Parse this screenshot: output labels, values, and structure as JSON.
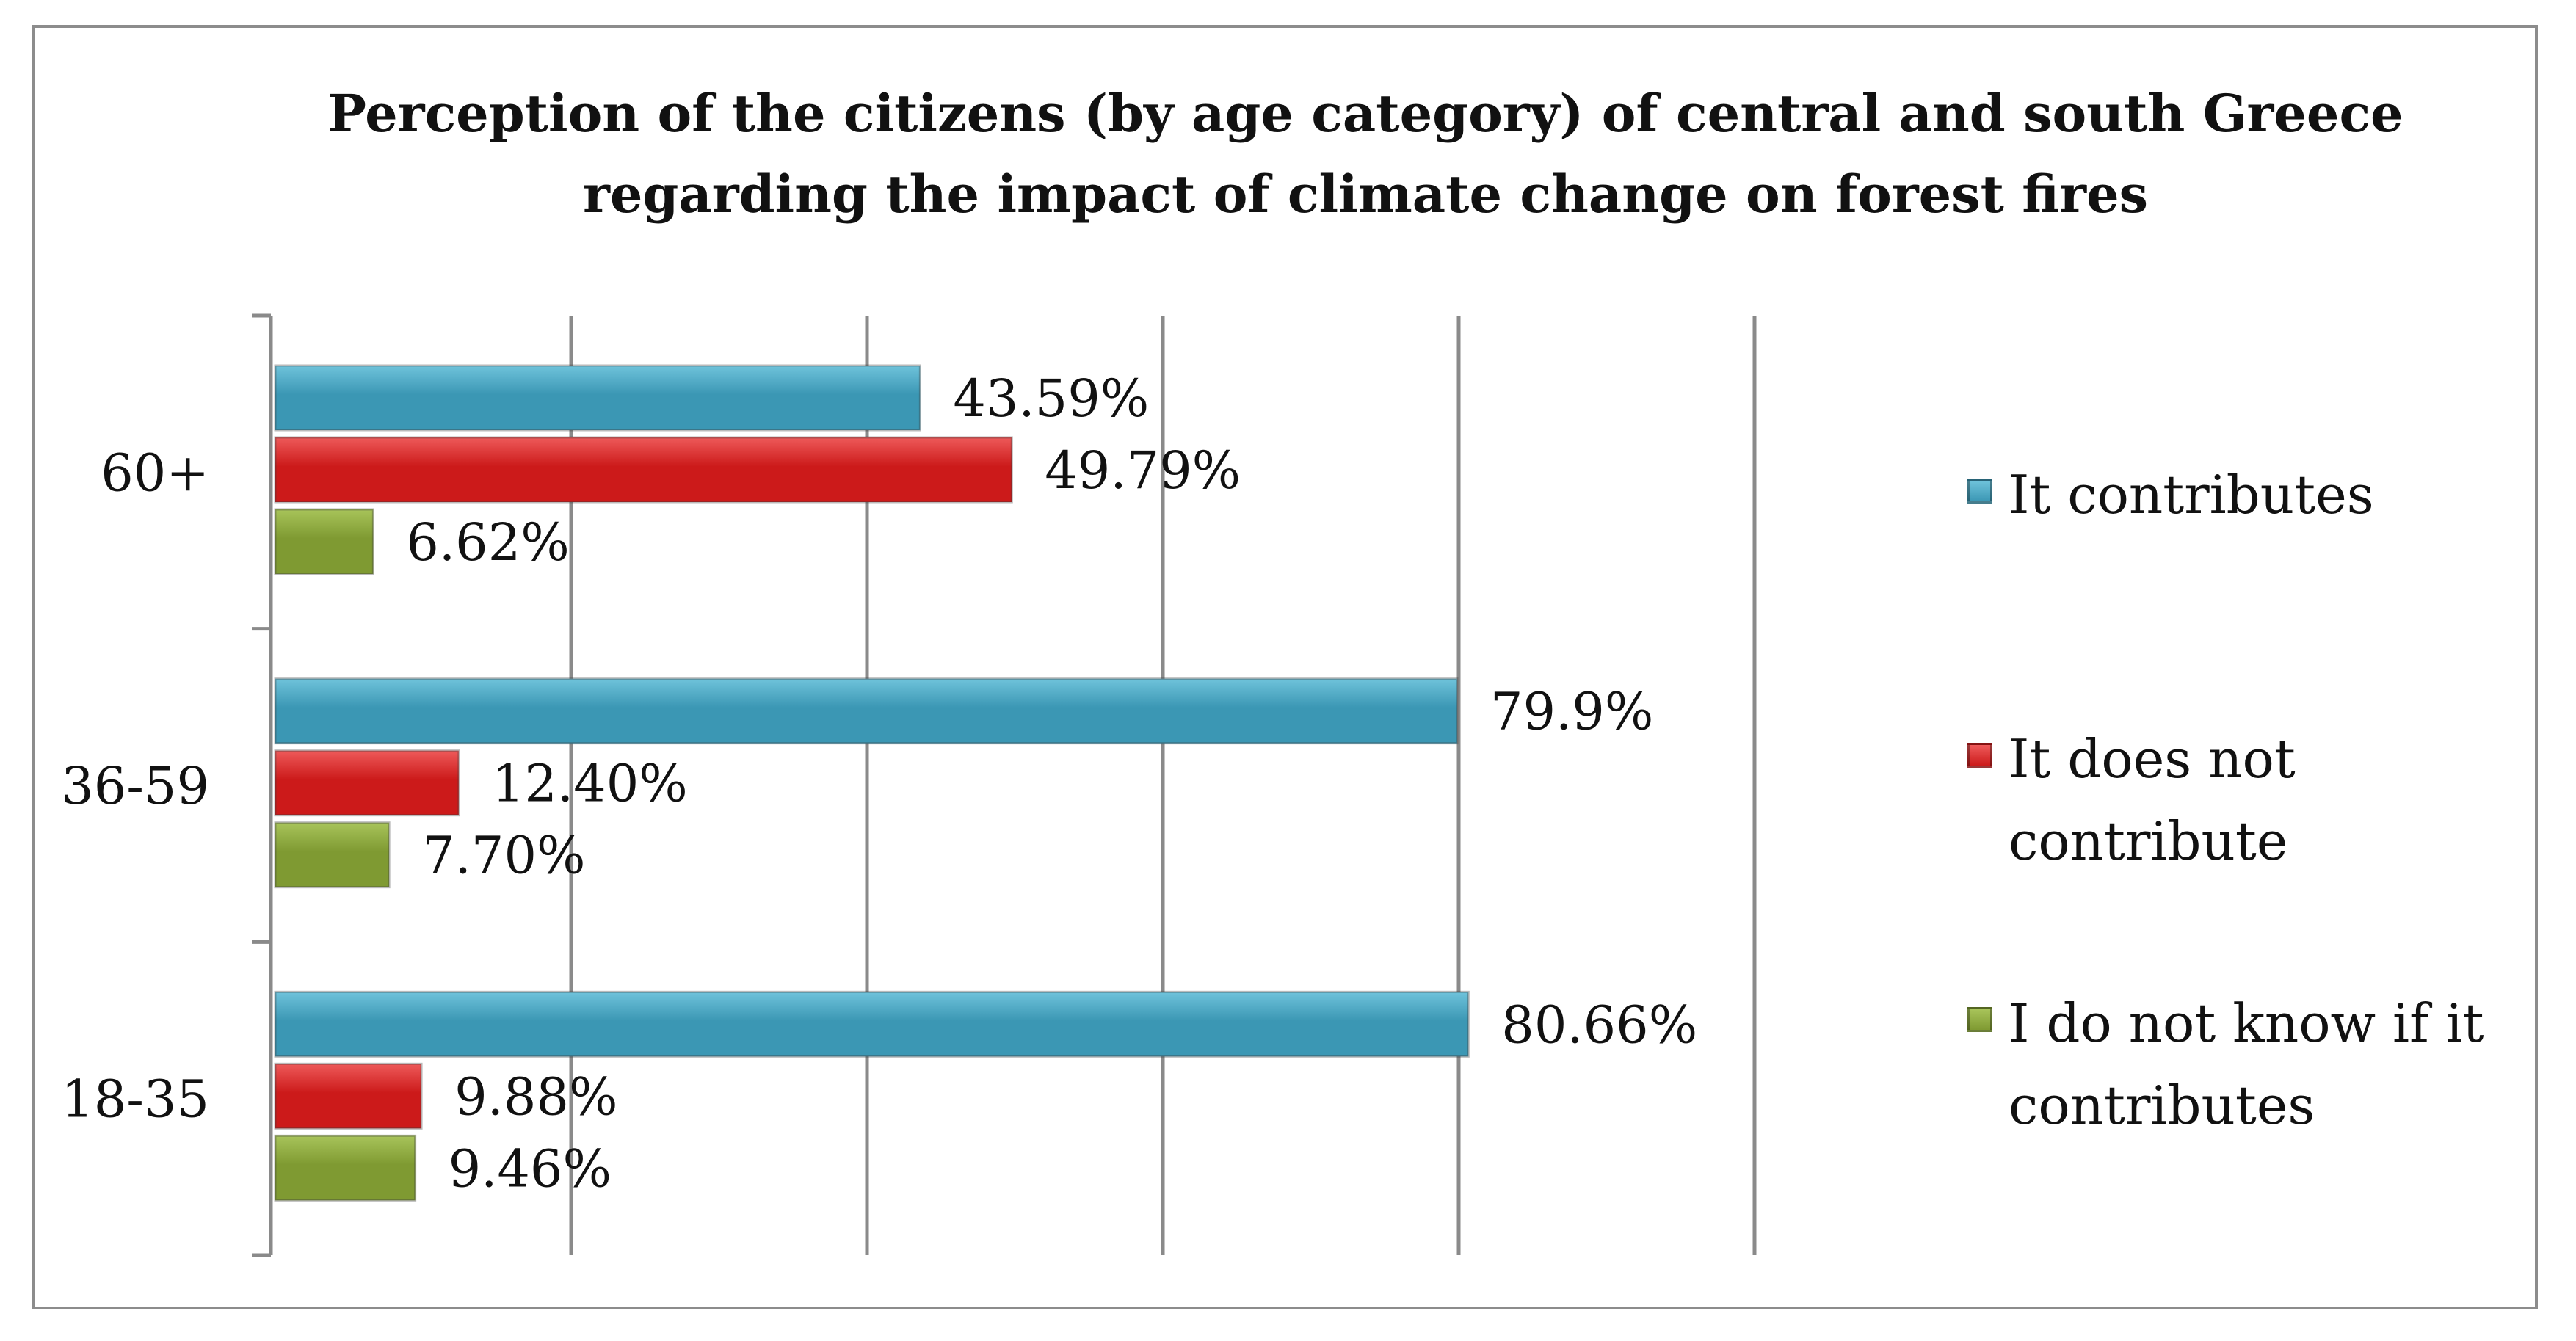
{
  "chart_data": {
    "type": "bar",
    "orientation": "horizontal",
    "title": "Perception of the citizens (by age category) of central and south Greece regarding the impact of climate change on forest fires",
    "title_lines": [
      "Perception of the citizens (by age category) of central and south Greece",
      "regarding the impact of climate change on forest fires"
    ],
    "categories": [
      "60+",
      "36-59",
      "18-35"
    ],
    "series": [
      {
        "name": "It contributes",
        "legend_lines": [
          "It contributes"
        ],
        "color": "#3b97b4",
        "values": [
          43.59,
          79.9,
          80.66
        ],
        "labels": [
          "43.59%",
          "79.9%",
          "80.66%"
        ]
      },
      {
        "name": "It does not contribute",
        "legend_lines": [
          "It does not",
          "contribute"
        ],
        "color": "#cc1a1a",
        "values": [
          49.79,
          12.4,
          9.88
        ],
        "labels": [
          "49.79%",
          "12.40%",
          "9.88%"
        ]
      },
      {
        "name": "I do not know if it contributes",
        "legend_lines": [
          "I do not know if it",
          "contributes"
        ],
        "color": "#7f9a32",
        "values": [
          6.62,
          7.7,
          9.46
        ],
        "labels": [
          "6.62%",
          "7.70%",
          "9.46%"
        ]
      }
    ],
    "xlim": [
      0,
      100
    ],
    "grid": true,
    "legend_position": "right"
  }
}
